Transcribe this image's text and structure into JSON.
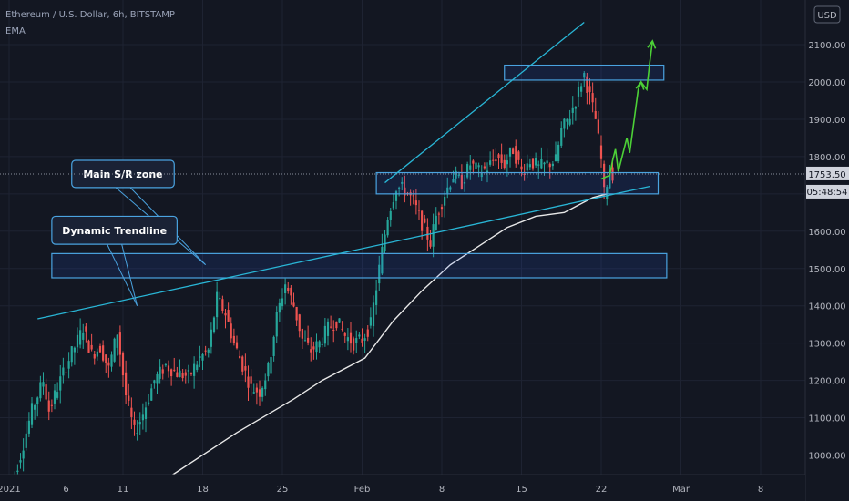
{
  "header": {
    "symbol_line": "Ethereum / U.S. Dollar, 6h, BITSTAMP",
    "indicator": "EMA"
  },
  "currency": "USD",
  "colors": {
    "background": "#131722",
    "up": "#26a69a",
    "down": "#ef5350",
    "ema": "#e8e8e8",
    "trendline": "#29b6d6",
    "zone_border": "#4aa3e0",
    "forecast": "#4cd137"
  },
  "chart_data": {
    "type": "candlestick",
    "instrument": "Ethereum / U.S. Dollar",
    "timeframe": "6h",
    "exchange": "BITSTAMP",
    "ylim": [
      920,
      2220
    ],
    "y_ticks": [
      1000,
      1100,
      1200,
      1300,
      1400,
      1500,
      1600,
      1700,
      1800,
      1900,
      2000,
      2100
    ],
    "y_tick_labels": [
      "1000.00",
      "1100.00",
      "1200.00",
      "1300.00",
      "1400.00",
      "1500.00",
      "1600.00",
      "1700.00",
      "1800.00",
      "1900.00",
      "2000.00",
      "2100.00"
    ],
    "x_ticks": [
      {
        "label": "2021",
        "t": 0
      },
      {
        "label": "6",
        "t": 20
      },
      {
        "label": "11",
        "t": 40
      },
      {
        "label": "18",
        "t": 68
      },
      {
        "label": "25",
        "t": 96
      },
      {
        "label": "Feb",
        "t": 124
      },
      {
        "label": "8",
        "t": 152
      },
      {
        "label": "15",
        "t": 180
      },
      {
        "label": "22",
        "t": 208
      },
      {
        "label": "Mar",
        "t": 236
      },
      {
        "label": "8",
        "t": 264
      }
    ],
    "current_price": 1753.5,
    "current_price_label": "1753.50",
    "countdown": "05:48:54",
    "path_points": [
      [
        0,
        900
      ],
      [
        4,
        1000
      ],
      [
        8,
        1120
      ],
      [
        12,
        1200
      ],
      [
        14,
        1120
      ],
      [
        17,
        1180
      ],
      [
        20,
        1240
      ],
      [
        23,
        1290
      ],
      [
        26,
        1340
      ],
      [
        29,
        1270
      ],
      [
        32,
        1290
      ],
      [
        35,
        1230
      ],
      [
        38,
        1330
      ],
      [
        41,
        1160
      ],
      [
        44,
        1060
      ],
      [
        47,
        1110
      ],
      [
        51,
        1200
      ],
      [
        55,
        1240
      ],
      [
        59,
        1220
      ],
      [
        63,
        1210
      ],
      [
        67,
        1260
      ],
      [
        70,
        1280
      ],
      [
        73,
        1420
      ],
      [
        76,
        1380
      ],
      [
        79,
        1300
      ],
      [
        82,
        1240
      ],
      [
        85,
        1180
      ],
      [
        88,
        1170
      ],
      [
        91,
        1230
      ],
      [
        94,
        1370
      ],
      [
        97,
        1460
      ],
      [
        100,
        1400
      ],
      [
        103,
        1310
      ],
      [
        106,
        1280
      ],
      [
        109,
        1300
      ],
      [
        112,
        1340
      ],
      [
        115,
        1360
      ],
      [
        118,
        1320
      ],
      [
        121,
        1300
      ],
      [
        124,
        1310
      ],
      [
        127,
        1350
      ],
      [
        130,
        1500
      ],
      [
        133,
        1640
      ],
      [
        136,
        1720
      ],
      [
        139,
        1710
      ],
      [
        142,
        1680
      ],
      [
        145,
        1620
      ],
      [
        148,
        1570
      ],
      [
        150,
        1640
      ],
      [
        153,
        1700
      ],
      [
        156,
        1750
      ],
      [
        159,
        1730
      ],
      [
        162,
        1780
      ],
      [
        165,
        1760
      ],
      [
        168,
        1770
      ],
      [
        171,
        1800
      ],
      [
        174,
        1780
      ],
      [
        177,
        1820
      ],
      [
        180,
        1760
      ],
      [
        183,
        1790
      ],
      [
        186,
        1770
      ],
      [
        189,
        1780
      ],
      [
        192,
        1790
      ],
      [
        194,
        1870
      ],
      [
        197,
        1910
      ],
      [
        199,
        1950
      ],
      [
        201,
        2000
      ],
      [
        202,
        2020
      ],
      [
        204,
        1960
      ],
      [
        206,
        1900
      ],
      [
        208,
        1790
      ],
      [
        209,
        1700
      ],
      [
        211,
        1760
      ],
      [
        212,
        1753.5
      ]
    ],
    "ema_points": [
      [
        42,
        870
      ],
      [
        60,
        960
      ],
      [
        80,
        1060
      ],
      [
        100,
        1150
      ],
      [
        110,
        1200
      ],
      [
        120,
        1240
      ],
      [
        125,
        1260
      ],
      [
        135,
        1360
      ],
      [
        145,
        1440
      ],
      [
        155,
        1510
      ],
      [
        165,
        1560
      ],
      [
        175,
        1610
      ],
      [
        185,
        1640
      ],
      [
        195,
        1650
      ],
      [
        200,
        1670
      ],
      [
        205,
        1690
      ],
      [
        210,
        1700
      ]
    ],
    "trendlines": [
      {
        "name": "dynamic-trendline",
        "points": [
          [
            10,
            1365
          ],
          [
            225,
            1720
          ]
        ]
      },
      {
        "name": "upper-channel-line",
        "points": [
          [
            132,
            1730
          ],
          [
            202,
            2160
          ]
        ]
      }
    ],
    "zones": [
      {
        "name": "main-sr-zone",
        "t0": 15,
        "t1": 231,
        "y0": 1475,
        "y1": 1540
      },
      {
        "name": "mid-zone",
        "t0": 129,
        "t1": 228,
        "y0": 1700,
        "y1": 1757
      },
      {
        "name": "top-zone",
        "t0": 174,
        "t1": 230,
        "y0": 2005,
        "y1": 2045
      }
    ],
    "forecast_points": [
      [
        208,
        1740
      ],
      [
        211,
        1750
      ],
      [
        212,
        1790
      ],
      [
        213,
        1820
      ],
      [
        214,
        1760
      ],
      [
        215,
        1790
      ],
      [
        217,
        1850
      ],
      [
        218,
        1810
      ],
      [
        221,
        1980
      ],
      [
        222,
        2000
      ],
      [
        224,
        1980
      ],
      [
        225,
        2050
      ],
      [
        226,
        2110
      ]
    ],
    "annotations": [
      {
        "name": "main-sr-zone-label",
        "text": "Main S/R zone",
        "box": {
          "t0": 22,
          "t1": 58,
          "y0": 1717,
          "y1": 1790
        },
        "pointer": {
          "from_y": 1717,
          "to": [
            69,
            1510
          ]
        }
      },
      {
        "name": "dynamic-trendline-label",
        "text": "Dynamic Trendline",
        "box": {
          "t0": 15,
          "t1": 59,
          "y0": 1565,
          "y1": 1640
        },
        "pointer": {
          "from_y": 1565,
          "to": [
            45,
            1400
          ]
        }
      }
    ]
  }
}
